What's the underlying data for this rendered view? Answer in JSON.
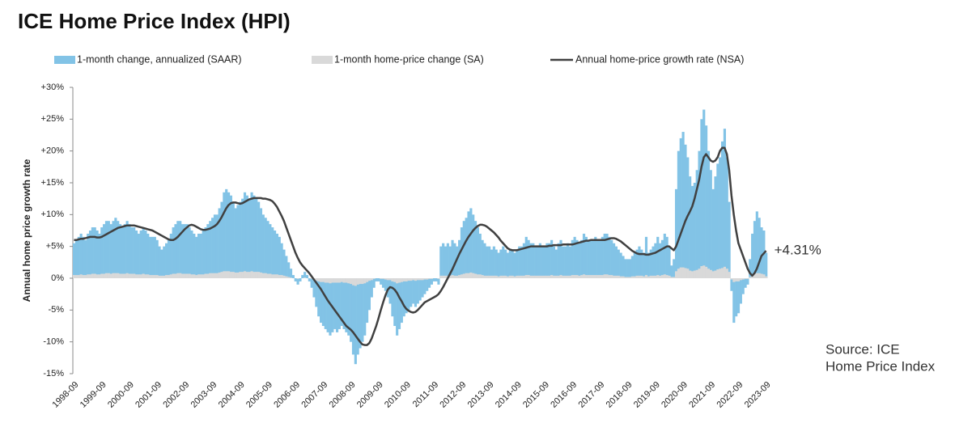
{
  "chart_data": {
    "type": "bar_line",
    "title": "ICE Home Price Index (HPI)",
    "y_label": "Annual home price growth rate",
    "annotation": "+4.31%",
    "source": [
      "Source: ICE",
      "Home Price Index"
    ],
    "ylim": [
      -15,
      30
    ],
    "yticks": [
      {
        "value": -15,
        "label": "-15%"
      },
      {
        "value": -10,
        "label": "-10%"
      },
      {
        "value": -5,
        "label": "-5%"
      },
      {
        "value": 0,
        "label": "0%"
      },
      {
        "value": 5,
        "label": "+5%"
      },
      {
        "value": 10,
        "label": "+10%"
      },
      {
        "value": 15,
        "label": "+15%"
      },
      {
        "value": 20,
        "label": "+20%"
      },
      {
        "value": 25,
        "label": "+25%"
      },
      {
        "value": 30,
        "label": "+30%"
      }
    ],
    "categories": [
      "1998-09",
      null,
      null,
      null,
      null,
      null,
      null,
      null,
      null,
      null,
      null,
      null,
      "1999-09",
      null,
      null,
      null,
      null,
      null,
      null,
      null,
      null,
      null,
      null,
      null,
      "2000-09",
      null,
      null,
      null,
      null,
      null,
      null,
      null,
      null,
      null,
      null,
      null,
      "2001-09",
      null,
      null,
      null,
      null,
      null,
      null,
      null,
      null,
      null,
      null,
      null,
      "2002-09",
      null,
      null,
      null,
      null,
      null,
      null,
      null,
      null,
      null,
      null,
      null,
      "2003-09",
      null,
      null,
      null,
      null,
      null,
      null,
      null,
      null,
      null,
      null,
      null,
      "2004-09",
      null,
      null,
      null,
      null,
      null,
      null,
      null,
      null,
      null,
      null,
      null,
      "2005-09",
      null,
      null,
      null,
      null,
      null,
      null,
      null,
      null,
      null,
      null,
      null,
      "2006-09",
      null,
      null,
      null,
      null,
      null,
      null,
      null,
      null,
      null,
      null,
      null,
      "2007-09",
      null,
      null,
      null,
      null,
      null,
      null,
      null,
      null,
      null,
      null,
      null,
      "2008-09",
      null,
      null,
      null,
      null,
      null,
      null,
      null,
      null,
      null,
      null,
      null,
      "2009-09",
      null,
      null,
      null,
      null,
      null,
      null,
      null,
      null,
      null,
      null,
      null,
      "2010-09",
      null,
      null,
      null,
      null,
      null,
      null,
      null,
      null,
      null,
      null,
      null,
      "2011-09",
      null,
      null,
      null,
      null,
      null,
      null,
      null,
      null,
      null,
      null,
      null,
      "2012-09",
      null,
      null,
      null,
      null,
      null,
      null,
      null,
      null,
      null,
      null,
      null,
      "2013-09",
      null,
      null,
      null,
      null,
      null,
      null,
      null,
      null,
      null,
      null,
      null,
      "2014-09",
      null,
      null,
      null,
      null,
      null,
      null,
      null,
      null,
      null,
      null,
      null,
      "2015-09",
      null,
      null,
      null,
      null,
      null,
      null,
      null,
      null,
      null,
      null,
      null,
      "2016-09",
      null,
      null,
      null,
      null,
      null,
      null,
      null,
      null,
      null,
      null,
      null,
      "2017-09",
      null,
      null,
      null,
      null,
      null,
      null,
      null,
      null,
      null,
      null,
      null,
      "2018-09",
      null,
      null,
      null,
      null,
      null,
      null,
      null,
      null,
      null,
      null,
      null,
      "2019-09",
      null,
      null,
      null,
      null,
      null,
      null,
      null,
      null,
      null,
      null,
      null,
      "2020-09",
      null,
      null,
      null,
      null,
      null,
      null,
      null,
      null,
      null,
      null,
      null,
      "2021-09",
      null,
      null,
      null,
      null,
      null,
      null,
      null,
      null,
      null,
      null,
      null,
      "2022-09",
      null,
      null,
      null,
      null,
      null,
      null,
      null,
      null,
      null,
      null,
      null,
      "2023-09"
    ],
    "series": [
      {
        "name": "1-month change, annualized (SAAR)",
        "kind": "bar",
        "color": "#82c3e6",
        "values": [
          5.5,
          6,
          6.5,
          7,
          6.5,
          6,
          7,
          7.5,
          8,
          8,
          7.5,
          7,
          8,
          8.5,
          9,
          9,
          8.5,
          9,
          9.5,
          9,
          8.5,
          8,
          8.5,
          9,
          8.5,
          8,
          8,
          7.5,
          7,
          7.5,
          8,
          7.5,
          7,
          6.5,
          6.5,
          6.5,
          6,
          5,
          4.5,
          5,
          5.5,
          6,
          7,
          8,
          8.5,
          9,
          9,
          8.5,
          8.5,
          8.5,
          8,
          7.5,
          7,
          6.5,
          7,
          7,
          7.5,
          8,
          8.5,
          9,
          9.5,
          10,
          10,
          11,
          12,
          13.5,
          14,
          13.5,
          13,
          12,
          11,
          11.5,
          12,
          12.5,
          13.5,
          13,
          12.5,
          13.5,
          13,
          12.5,
          12,
          11,
          10,
          9.5,
          9,
          8.5,
          8,
          7.5,
          7,
          6.5,
          5.5,
          4.5,
          3.5,
          2.5,
          1.5,
          0.5,
          -0.5,
          -1,
          -0.5,
          0.5,
          1,
          0.5,
          -0.5,
          -1.5,
          -3,
          -4.5,
          -6,
          -7,
          -7.5,
          -8,
          -8.5,
          -9,
          -8.5,
          -8,
          -8.5,
          -8,
          -7.5,
          -8,
          -8.5,
          -9,
          -10,
          -12,
          -13.5,
          -12,
          -11,
          -10,
          -9,
          -7,
          -5,
          -3,
          -1.5,
          -0.5,
          -0.5,
          -1,
          -1.5,
          -2,
          -3,
          -4,
          -6,
          -7.5,
          -9,
          -8,
          -7,
          -6,
          -5.5,
          -5,
          -4.5,
          -4,
          -4.5,
          -4,
          -3.5,
          -3,
          -2.5,
          -2,
          -1.5,
          -1,
          -0.5,
          -0.5,
          -1,
          5,
          5.5,
          5,
          5.5,
          5,
          6,
          5.5,
          5,
          6,
          8,
          9,
          9.5,
          10.5,
          11,
          10,
          9,
          8,
          7,
          6,
          5.5,
          5,
          5,
          4.5,
          5,
          4.5,
          4,
          4.5,
          5,
          4.5,
          4,
          4.5,
          4.5,
          4,
          4.5,
          5,
          5,
          5.5,
          6.5,
          6,
          5.5,
          5.5,
          5,
          5,
          5.5,
          5,
          5,
          5.5,
          5.5,
          6,
          5,
          4.5,
          5.5,
          6,
          5,
          5,
          5.5,
          5,
          6,
          6.5,
          6,
          5.5,
          6,
          7,
          6.5,
          6,
          6,
          6,
          6.5,
          6,
          6,
          6.5,
          7,
          7,
          6.5,
          6,
          5.5,
          5,
          4.5,
          4,
          3.5,
          3,
          3,
          3,
          3.5,
          4,
          4.5,
          5,
          4.5,
          4,
          6.5,
          4,
          4.5,
          5,
          5.5,
          6.5,
          5.5,
          6,
          7,
          6.5,
          5,
          2,
          3,
          14,
          20,
          22,
          23,
          21,
          19,
          16,
          14.5,
          15,
          17,
          20,
          25,
          26.5,
          24,
          20,
          17,
          14,
          16,
          18,
          19,
          21.5,
          23.5,
          19,
          12,
          -2,
          -7,
          -6,
          -5.5,
          -4,
          -2.5,
          -1.5,
          -1,
          3,
          7,
          9,
          10.5,
          9.5,
          8,
          7.5,
          4
        ]
      },
      {
        "name": "1-month home-price change (SA)",
        "kind": "bar",
        "color": "#d9d9d9",
        "values": [
          0.5,
          0.5,
          0.5,
          0.6,
          0.5,
          0.5,
          0.6,
          0.6,
          0.7,
          0.7,
          0.6,
          0.6,
          0.7,
          0.7,
          0.8,
          0.8,
          0.7,
          0.8,
          0.8,
          0.8,
          0.7,
          0.7,
          0.7,
          0.8,
          0.7,
          0.7,
          0.7,
          0.6,
          0.6,
          0.6,
          0.7,
          0.6,
          0.6,
          0.5,
          0.5,
          0.5,
          0.5,
          0.4,
          0.4,
          0.4,
          0.5,
          0.5,
          0.6,
          0.7,
          0.7,
          0.8,
          0.8,
          0.7,
          0.7,
          0.7,
          0.7,
          0.6,
          0.6,
          0.5,
          0.6,
          0.6,
          0.6,
          0.7,
          0.7,
          0.8,
          0.8,
          0.8,
          0.8,
          0.9,
          1,
          1.1,
          1.1,
          1.1,
          1,
          1,
          0.9,
          0.9,
          1,
          1,
          1.1,
          1,
          1,
          1.1,
          1,
          1,
          1,
          0.9,
          0.8,
          0.8,
          0.7,
          0.7,
          0.6,
          0.6,
          0.6,
          0.5,
          0.5,
          0.4,
          0.3,
          0.2,
          0.1,
          0,
          0,
          -0.1,
          0,
          0,
          0.1,
          0,
          0,
          -0.1,
          -0.3,
          -0.4,
          -0.5,
          -0.6,
          -0.6,
          -0.7,
          -0.7,
          -0.8,
          -0.7,
          -0.7,
          -0.7,
          -0.7,
          -0.6,
          -0.7,
          -0.7,
          -0.8,
          -0.9,
          -1.1,
          -1.2,
          -1,
          -0.9,
          -0.9,
          -0.8,
          -0.6,
          -0.4,
          -0.3,
          -0.1,
          0,
          0,
          -0.1,
          -0.1,
          -0.2,
          -0.3,
          -0.3,
          -0.5,
          -0.6,
          -0.8,
          -0.7,
          -0.6,
          -0.5,
          -0.5,
          -0.4,
          -0.4,
          -0.3,
          -0.4,
          -0.3,
          -0.3,
          -0.3,
          -0.2,
          -0.2,
          -0.1,
          -0.1,
          0,
          0,
          -0.1,
          0.4,
          0.4,
          0.4,
          0.4,
          0.4,
          0.5,
          0.4,
          0.4,
          0.5,
          0.6,
          0.7,
          0.8,
          0.8,
          0.9,
          0.8,
          0.7,
          0.6,
          0.6,
          0.5,
          0.4,
          0.4,
          0.4,
          0.4,
          0.4,
          0.4,
          0.3,
          0.4,
          0.4,
          0.4,
          0.3,
          0.4,
          0.4,
          0.3,
          0.4,
          0.4,
          0.4,
          0.4,
          0.5,
          0.5,
          0.4,
          0.4,
          0.4,
          0.4,
          0.4,
          0.4,
          0.4,
          0.4,
          0.4,
          0.5,
          0.4,
          0.4,
          0.4,
          0.5,
          0.4,
          0.4,
          0.4,
          0.4,
          0.5,
          0.5,
          0.5,
          0.4,
          0.5,
          0.6,
          0.5,
          0.5,
          0.5,
          0.5,
          0.5,
          0.5,
          0.5,
          0.5,
          0.6,
          0.6,
          0.5,
          0.5,
          0.4,
          0.4,
          0.4,
          0.3,
          0.3,
          0.2,
          0.2,
          0.2,
          0.3,
          0.3,
          0.4,
          0.4,
          0.4,
          0.3,
          0.5,
          0.3,
          0.4,
          0.4,
          0.4,
          0.5,
          0.4,
          0.5,
          0.6,
          0.5,
          0.4,
          0.2,
          0.2,
          1.1,
          1.5,
          1.7,
          1.7,
          1.6,
          1.5,
          1.2,
          1.1,
          1.2,
          1.3,
          1.5,
          1.9,
          2,
          1.8,
          1.5,
          1.3,
          1.1,
          1.2,
          1.4,
          1.5,
          1.6,
          1.8,
          1.5,
          1,
          -0.2,
          -0.6,
          -0.5,
          -0.5,
          -0.3,
          -0.2,
          -0.1,
          -0.1,
          0.2,
          0.6,
          0.7,
          0.8,
          0.8,
          0.7,
          0.6,
          0.3
        ]
      },
      {
        "name": "Annual home-price growth rate (NSA)",
        "kind": "line",
        "color": "#404040",
        "values": [
          6,
          6,
          6.1,
          6.2,
          6.2,
          6.3,
          6.4,
          6.5,
          6.5,
          6.5,
          6.4,
          6.4,
          6.5,
          6.7,
          6.9,
          7.1,
          7.3,
          7.5,
          7.7,
          7.9,
          8,
          8.1,
          8.2,
          8.3,
          8.3,
          8.3,
          8.3,
          8.2,
          8.1,
          8,
          7.9,
          7.8,
          7.7,
          7.6,
          7.5,
          7.3,
          7.1,
          6.9,
          6.7,
          6.5,
          6.3,
          6.1,
          6,
          6,
          6.2,
          6.5,
          6.9,
          7.3,
          7.7,
          8,
          8.3,
          8.4,
          8.3,
          8.1,
          7.9,
          7.7,
          7.6,
          7.6,
          7.7,
          7.8,
          8,
          8.2,
          8.5,
          9,
          9.6,
          10.3,
          11,
          11.5,
          11.8,
          11.9,
          11.9,
          11.8,
          11.7,
          11.8,
          12,
          12.2,
          12.4,
          12.5,
          12.6,
          12.6,
          12.6,
          12.6,
          12.5,
          12.5,
          12.4,
          12.3,
          12.1,
          11.7,
          11.2,
          10.5,
          9.8,
          9,
          8,
          7,
          6,
          5,
          4,
          3.2,
          2.5,
          2,
          1.6,
          1.2,
          0.8,
          0.3,
          -0.2,
          -0.7,
          -1.2,
          -1.7,
          -2.3,
          -2.9,
          -3.5,
          -4,
          -4.5,
          -5,
          -5.5,
          -6,
          -6.5,
          -7,
          -7.5,
          -7.8,
          -8.1,
          -8.5,
          -9,
          -9.5,
          -10,
          -10.4,
          -10.5,
          -10.5,
          -10.2,
          -9.5,
          -8.5,
          -7.5,
          -6.3,
          -5,
          -3.8,
          -2.7,
          -1.8,
          -1.4,
          -1.5,
          -1.8,
          -2.3,
          -3,
          -3.6,
          -4.3,
          -4.8,
          -5.1,
          -5.3,
          -5.4,
          -5.3,
          -5,
          -4.6,
          -4.2,
          -3.8,
          -3.6,
          -3.4,
          -3.2,
          -3,
          -2.8,
          -2.5,
          -2,
          -1.4,
          -0.7,
          0,
          0.7,
          1.4,
          2.2,
          3,
          3.8,
          4.5,
          5.2,
          5.9,
          6.5,
          7,
          7.5,
          7.9,
          8.2,
          8.4,
          8.4,
          8.3,
          8.1,
          7.8,
          7.5,
          7.2,
          6.8,
          6.4,
          5.9,
          5.5,
          5.1,
          4.7,
          4.5,
          4.4,
          4.4,
          4.4,
          4.5,
          4.6,
          4.7,
          4.8,
          4.9,
          5,
          5,
          5,
          5,
          5,
          5,
          5,
          5,
          5.1,
          5.1,
          5.2,
          5.2,
          5.2,
          5.2,
          5.3,
          5.3,
          5.3,
          5.3,
          5.3,
          5.4,
          5.5,
          5.6,
          5.7,
          5.8,
          5.9,
          5.9,
          6,
          6,
          6,
          6,
          6,
          6,
          6,
          6.1,
          6.2,
          6.3,
          6.3,
          6.2,
          6,
          5.8,
          5.5,
          5.2,
          4.9,
          4.6,
          4.3,
          4.1,
          3.9,
          3.8,
          3.8,
          3.8,
          3.7,
          3.7,
          3.8,
          3.9,
          4,
          4.2,
          4.4,
          4.6,
          4.8,
          5,
          5,
          4.7,
          4.4,
          5,
          6,
          7,
          8,
          9,
          9.8,
          10.5,
          11.3,
          12.5,
          14,
          15.5,
          17.5,
          19,
          19.5,
          19,
          18.5,
          18.3,
          18.5,
          19,
          20,
          20.5,
          20.5,
          19.5,
          17,
          13,
          10,
          7.5,
          5.5,
          4.5,
          3.5,
          2.5,
          1.5,
          0.8,
          0.4,
          0.8,
          1.5,
          2.5,
          3.5,
          3.9,
          4.31
        ]
      }
    ]
  }
}
